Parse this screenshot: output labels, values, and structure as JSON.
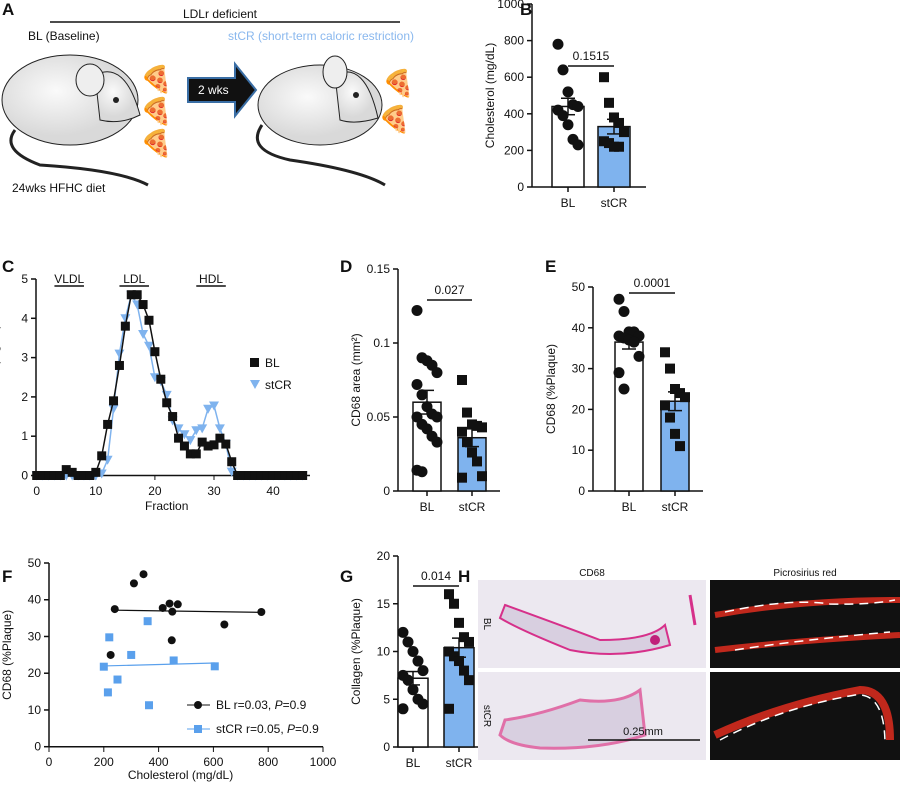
{
  "colors": {
    "bl": "#111111",
    "stcr": "#7fb3ee",
    "stcr_text": "#8ab8ee",
    "arrow": "#111111",
    "arrow_border": "#3a6ea5"
  },
  "panel_a": {
    "letter": "A",
    "group": "LDLr deficient",
    "bl_label": "BL (Baseline)",
    "stcr_label": "stCR (short-term caloric restriction)",
    "arrow_label": "2 wks",
    "diet_label": "24wks HFHC diet"
  },
  "panel_h": {
    "letter": "H",
    "col1": "CD68",
    "col2": "Picrosirius red",
    "row1": "BL",
    "row2": "stCR",
    "scale": "0.25mm"
  },
  "chart_data": [
    {
      "panel": "B",
      "type": "bar",
      "categories": [
        "BL",
        "stCR"
      ],
      "means": [
        440,
        330
      ],
      "sem": [
        45,
        40
      ],
      "points": [
        [
          780,
          640,
          520,
          450,
          440,
          420,
          390,
          340,
          260,
          230
        ],
        [
          600,
          460,
          380,
          350,
          300,
          250,
          240,
          220,
          220
        ]
      ],
      "ylabel": "Cholesterol (mg/dL)",
      "ylim": [
        0,
        1000
      ],
      "yticks": [
        "0",
        "200",
        "400",
        "600",
        "800",
        "1000"
      ],
      "pvalue": "0.1515"
    },
    {
      "panel": "C",
      "type": "line",
      "xlabel": "Fraction",
      "ylabel": "Cholesterol (mg/dL)",
      "xlim": [
        0,
        45
      ],
      "ylim": [
        0,
        5
      ],
      "xticks": [
        "0",
        "10",
        "20",
        "30",
        "40"
      ],
      "yticks": [
        "0",
        "1",
        "2",
        "3",
        "4",
        "5"
      ],
      "legend": "right",
      "regions": [
        "VLDL",
        "LDL",
        "HDL"
      ],
      "x": [
        0,
        1,
        2,
        3,
        4,
        5,
        6,
        7,
        8,
        9,
        10,
        11,
        12,
        13,
        14,
        15,
        16,
        17,
        18,
        19,
        20,
        21,
        22,
        23,
        24,
        25,
        26,
        27,
        28,
        29,
        30,
        31,
        32,
        33,
        34,
        35,
        36,
        37,
        38,
        39,
        40,
        41,
        42,
        43,
        44,
        45
      ],
      "series": [
        {
          "name": "BL",
          "values": [
            0,
            0,
            0,
            0,
            0,
            0.15,
            0.08,
            0,
            0,
            0,
            0.08,
            0.5,
            1.3,
            1.9,
            2.8,
            3.8,
            4.6,
            4.6,
            4.35,
            3.95,
            3.15,
            2.45,
            1.85,
            1.5,
            0.95,
            0.75,
            0.55,
            0.55,
            0.85,
            0.75,
            0.78,
            0.95,
            0.8,
            0.35,
            0,
            0,
            0,
            0,
            0,
            0,
            0,
            0,
            0,
            0,
            0,
            0
          ]
        },
        {
          "name": "stCR",
          "values": [
            0,
            0,
            0,
            0,
            0,
            0,
            0,
            0,
            0,
            0,
            0,
            0.05,
            0.4,
            1.7,
            3.1,
            4.0,
            4.6,
            4.35,
            3.6,
            3.3,
            2.5,
            2.4,
            2.05,
            1.4,
            1.2,
            1.05,
            0.9,
            1.15,
            1.2,
            1.7,
            1.78,
            1.2,
            0.8,
            0.1,
            0,
            0,
            0,
            0,
            0,
            0,
            0,
            0,
            0,
            0,
            0,
            0
          ]
        }
      ]
    },
    {
      "panel": "D",
      "type": "bar",
      "categories": [
        "BL",
        "stCR"
      ],
      "means": [
        0.06,
        0.036
      ],
      "sem": [
        0.008,
        0.006
      ],
      "points": [
        [
          0.122,
          0.09,
          0.088,
          0.085,
          0.08,
          0.072,
          0.065,
          0.057,
          0.052,
          0.05,
          0.05,
          0.045,
          0.042,
          0.037,
          0.033,
          0.014,
          0.013
        ],
        [
          0.075,
          0.053,
          0.045,
          0.044,
          0.043,
          0.04,
          0.033,
          0.026,
          0.02,
          0.01,
          0.009
        ]
      ],
      "ylabel": "CD68 area (mm²)",
      "ylim": [
        0,
        0.15
      ],
      "yticks": [
        "0",
        "0.05",
        "0.1",
        "0.15"
      ],
      "pvalue": "0.027"
    },
    {
      "panel": "E",
      "type": "bar",
      "categories": [
        "BL",
        "stCR"
      ],
      "means": [
        36.5,
        22
      ],
      "sem": [
        1.7,
        2.3
      ],
      "points": [
        [
          47,
          44,
          39,
          39,
          38,
          38,
          37.5,
          37,
          36.5,
          33,
          29,
          25
        ],
        [
          34,
          30,
          25,
          24,
          23,
          21,
          18,
          14,
          11
        ]
      ],
      "ylabel": "CD68 (%Plaque)",
      "ylim": [
        0,
        50
      ],
      "yticks": [
        "0",
        "10",
        "20",
        "30",
        "40",
        "50"
      ],
      "pvalue": "0.0001"
    },
    {
      "panel": "F",
      "type": "scatter",
      "xlabel": "Cholesterol (mg/dL)",
      "ylabel": "CD68 (%Plaque)",
      "xlim": [
        0,
        1000
      ],
      "ylim": [
        0,
        50
      ],
      "xticks": [
        "0",
        "200",
        "400",
        "600",
        "800",
        "1000"
      ],
      "yticks": [
        "0",
        "10",
        "20",
        "30",
        "40",
        "50"
      ],
      "legend": "bottom-right",
      "series": [
        {
          "name": "BL",
          "label": "BL r=0.03, ",
          "p": "P",
          "pval": "=0.9",
          "x": [
            240,
            310,
            345,
            415,
            440,
            450,
            470,
            225,
            448,
            640,
            775
          ],
          "y": [
            37.5,
            44.5,
            47,
            37.8,
            39,
            36.8,
            38.8,
            25,
            29,
            33.3,
            36.7
          ],
          "fit": [
            [
              240,
              37.2
            ],
            [
              780,
              36.6
            ]
          ]
        },
        {
          "name": "stCR",
          "label": "stCR r=0.05, ",
          "p": "P",
          "pval": "=0.9",
          "x": [
            220,
            360,
            300,
            455,
            200,
            605,
            250,
            215,
            365
          ],
          "y": [
            29.8,
            34.2,
            25,
            23.5,
            21.8,
            21.9,
            18.3,
            14.8,
            11.3
          ],
          "fit": [
            [
              200,
              22
            ],
            [
              605,
              22.8
            ]
          ]
        }
      ]
    },
    {
      "panel": "G",
      "type": "bar",
      "categories": [
        "BL",
        "stCR"
      ],
      "means": [
        7.2,
        10.4
      ],
      "sem": [
        0.7,
        1.0
      ],
      "points": [
        [
          12,
          11,
          10,
          9,
          8,
          7.5,
          7,
          6,
          5,
          4.5,
          4
        ],
        [
          16,
          15,
          13,
          11.5,
          11,
          10,
          9.5,
          9,
          8,
          7,
          4
        ]
      ],
      "ylabel": "Collagen (%Plaque)",
      "ylim": [
        0,
        20
      ],
      "yticks": [
        "0",
        "5",
        "10",
        "15",
        "20"
      ],
      "pvalue": "0.014"
    }
  ]
}
